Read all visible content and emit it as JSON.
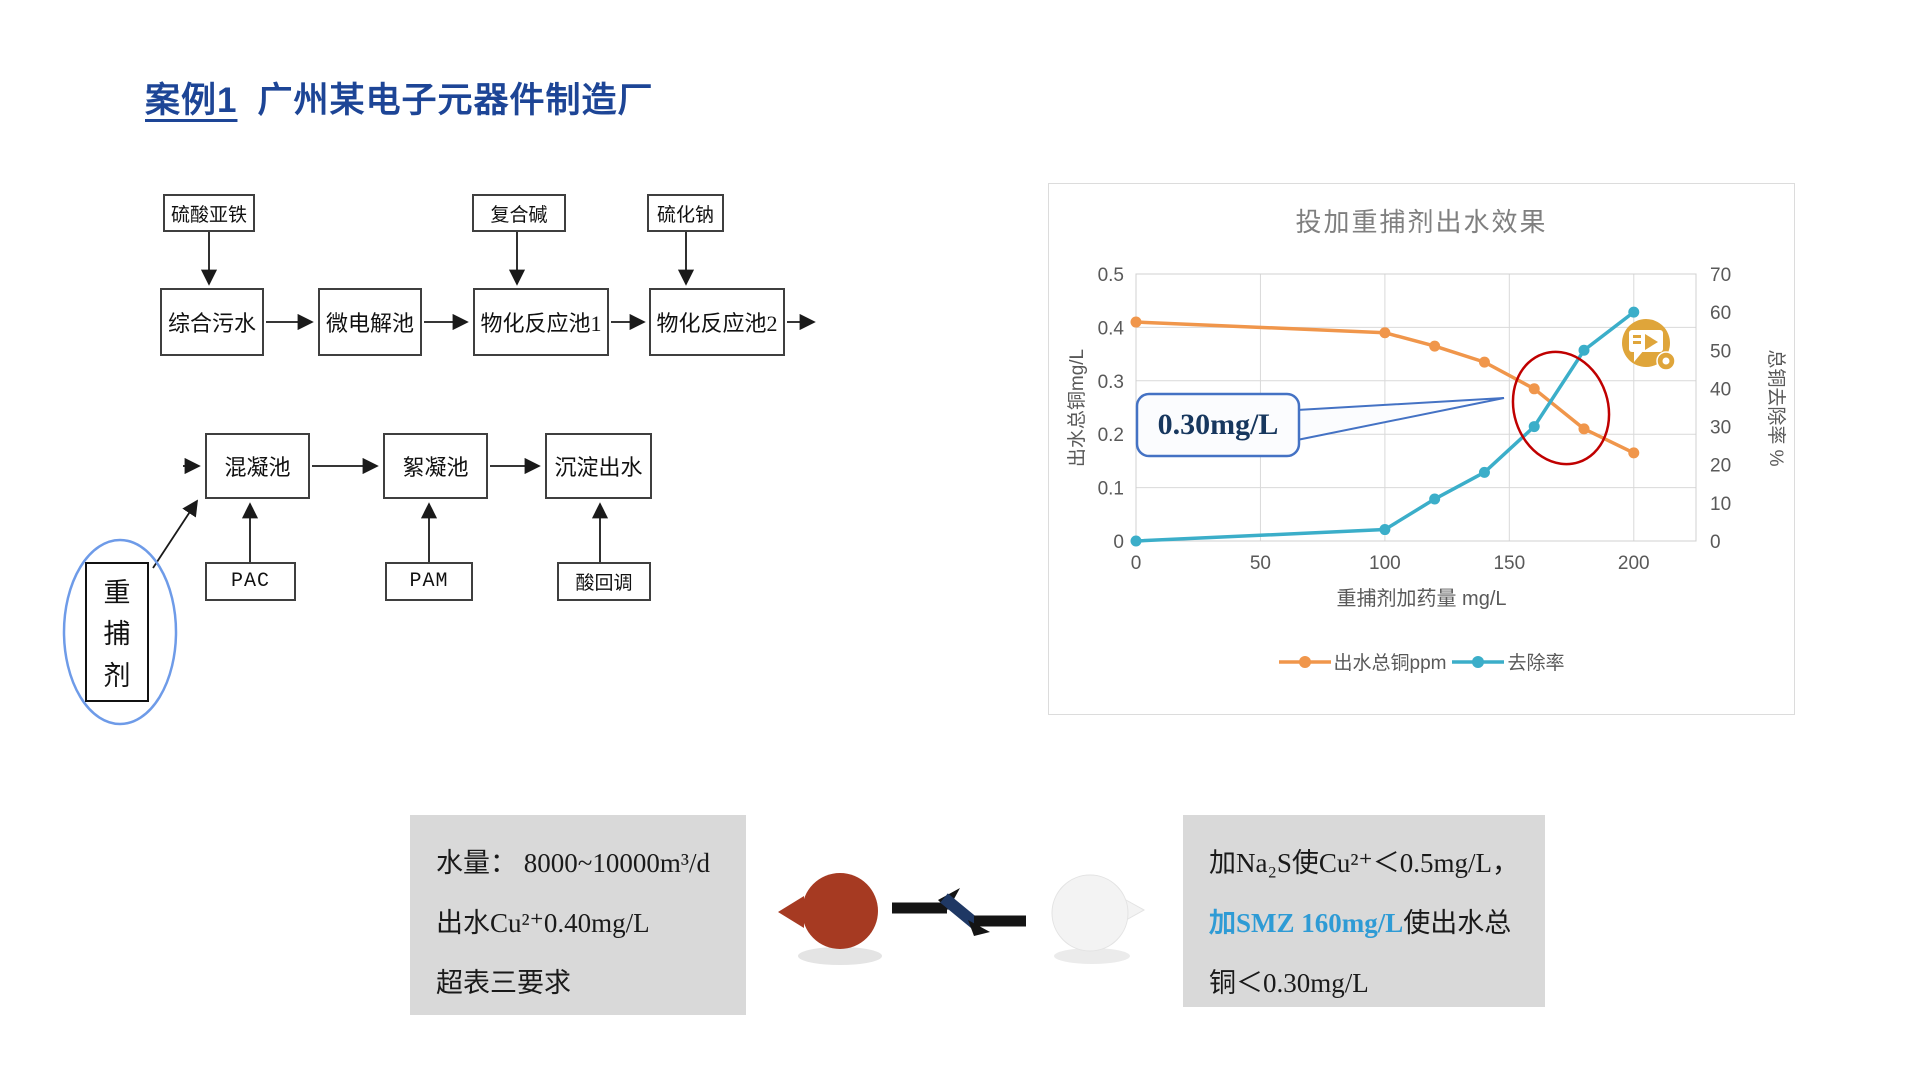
{
  "title": {
    "case_label": "案例1",
    "rest": "广州某电子元器件制造厂"
  },
  "flowchart": {
    "chem_boxes_top": [
      "硫酸亚铁",
      "复合碱",
      "硫化钠"
    ],
    "main_row": [
      "综合污水",
      "微电解池",
      "物化反应池1",
      "物化反应池2"
    ],
    "second_row": [
      "混凝池",
      "絮凝池",
      "沉淀出水"
    ],
    "chem_boxes_bottom": [
      "PAC",
      "PAM",
      "酸回调"
    ],
    "capture_agent": {
      "label": "重捕剂",
      "chars": [
        "重",
        "捕",
        "剂"
      ]
    }
  },
  "chart_data": {
    "type": "line",
    "title": "投加重捕剂出水效果",
    "xlabel": "重捕剂加药量 mg/L",
    "ylabel_left": "出水总铜mg/L",
    "ylabel_right": "总铜去除率 %",
    "xlim": [
      0,
      225
    ],
    "x_ticks": [
      0,
      50,
      100,
      150,
      200
    ],
    "ylim_left": [
      0,
      0.5
    ],
    "yticks_left": [
      0,
      0.1,
      0.2,
      0.3,
      0.4,
      0.5
    ],
    "ylim_right": [
      0,
      70
    ],
    "yticks_right": [
      0,
      10,
      20,
      30,
      40,
      50,
      60,
      70
    ],
    "grid": true,
    "legend_position": "bottom",
    "series": [
      {
        "name": "出水总铜ppm",
        "axis": "left",
        "color": "#F0964B",
        "marker": "circle",
        "points": [
          [
            0,
            0.41
          ],
          [
            100,
            0.39
          ],
          [
            120,
            0.365
          ],
          [
            140,
            0.335
          ],
          [
            160,
            0.285
          ],
          [
            180,
            0.21
          ],
          [
            200,
            0.165
          ]
        ]
      },
      {
        "name": "去除率",
        "axis": "right",
        "color": "#3BAEC9",
        "marker": "circle",
        "points": [
          [
            0,
            0
          ],
          [
            100,
            3
          ],
          [
            120,
            11
          ],
          [
            140,
            18
          ],
          [
            160,
            30
          ],
          [
            180,
            50
          ],
          [
            200,
            60
          ]
        ]
      }
    ],
    "annotations": {
      "callout_text": "0.30mg/L",
      "highlight_circle_color": "#C00000",
      "media_icon": "video-comment-icon"
    }
  },
  "info_left": {
    "lines": [
      "水量： 8000~10000m³/d",
      "出水Cu²⁺0.40mg/L",
      "超表三要求"
    ]
  },
  "info_right": {
    "line1": "加Na₂S使Cu²⁺＜0.5mg/L，",
    "line2_highlight": "加SMZ 160mg/L",
    "line2_rest": "使出水总",
    "line3": "铜＜0.30mg/L"
  },
  "colors": {
    "title_blue": "#1d4596",
    "series_orange": "#F0964B",
    "series_blue": "#3BAEC9",
    "highlight_red": "#C00000",
    "callout_border": "#4472C4",
    "callout_text": "#17375E",
    "info_bg": "#D9D9D9",
    "smz_blue": "#2E9BD5",
    "ellipse_blue": "#6E9BE8",
    "gold_icon": "#DFA53A"
  }
}
